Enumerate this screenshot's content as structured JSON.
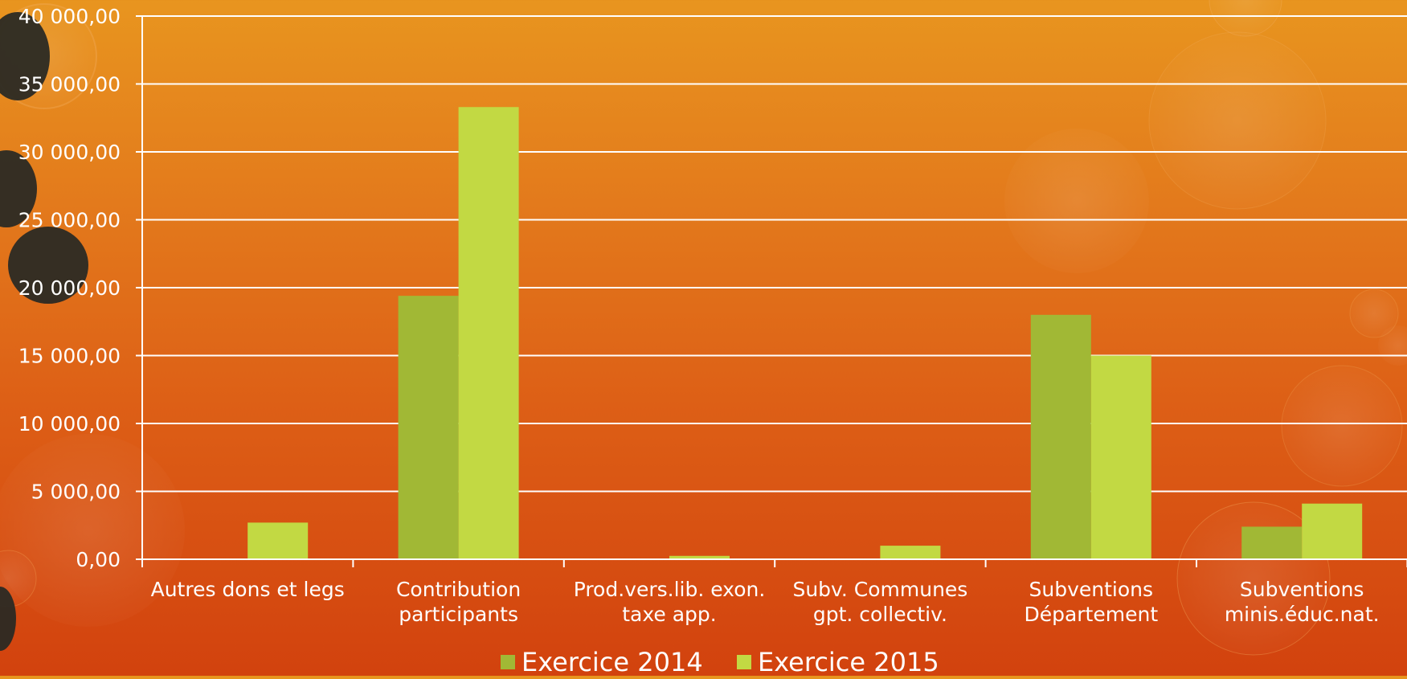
{
  "chart_data": {
    "type": "bar",
    "title": "",
    "xlabel": "",
    "ylabel": "",
    "categories": [
      [
        "Autres dons et legs"
      ],
      [
        "Contribution",
        "participants"
      ],
      [
        "Prod.vers.lib. exon.",
        "taxe app."
      ],
      [
        "Subv. Communes",
        "gpt. collectiv."
      ],
      [
        "Subventions",
        "Département"
      ],
      [
        "Subventions",
        "minis.éduc.nat."
      ]
    ],
    "series": [
      {
        "name": "Exercice 2014",
        "color": "#a1b835",
        "values": [
          0,
          19400,
          0,
          0,
          18000,
          2400
        ]
      },
      {
        "name": "Exercice 2015",
        "color": "#c2d943",
        "values": [
          2700,
          33300,
          250,
          1000,
          15000,
          4100
        ]
      }
    ],
    "ylim": [
      0,
      40000
    ],
    "yticks": [
      "0,00",
      "5 000,00",
      "10 000,00",
      "15 000,00",
      "20 000,00",
      "25 000,00",
      "30 000,00",
      "35 000,00",
      "40 000,00"
    ],
    "grid": true,
    "legend_position": "bottom"
  }
}
